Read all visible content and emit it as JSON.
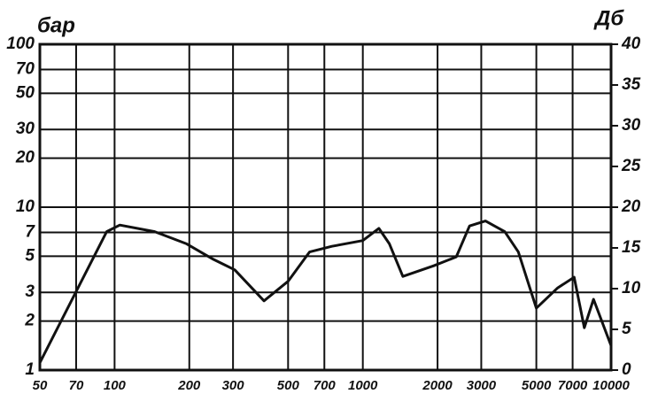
{
  "chart_data": {
    "type": "line",
    "ylabel": "бар",
    "y2label": "Дб",
    "xscale": "log",
    "yscale": "log",
    "xlim": [
      50,
      10000
    ],
    "xticks": [
      50,
      70,
      100,
      200,
      300,
      500,
      700,
      1000,
      2000,
      3000,
      5000,
      7000,
      10000
    ],
    "ylim": [
      1,
      100
    ],
    "yticks": [
      1,
      2,
      3,
      5,
      7,
      10,
      20,
      30,
      50,
      70,
      100
    ],
    "y2lim": [
      0,
      40
    ],
    "y2ticks": [
      0,
      5,
      10,
      15,
      20,
      25,
      30,
      35,
      40
    ],
    "grid": true,
    "x": [
      50,
      67,
      93,
      105,
      145,
      195,
      250,
      305,
      400,
      500,
      610,
      750,
      1000,
      1160,
      1280,
      1450,
      1930,
      2380,
      2690,
      3120,
      3730,
      4230,
      5000,
      6100,
      7100,
      7800,
      8500,
      10000
    ],
    "series": [
      {
        "color": "#111111",
        "axis": "y2",
        "values": [
          0.9,
          8.5,
          17,
          17.8,
          17,
          15.5,
          13.6,
          12.3,
          8.5,
          10.9,
          14.5,
          15.2,
          15.9,
          17.4,
          15.5,
          11.5,
          12.8,
          13.9,
          17.7,
          18.3,
          17,
          14.5,
          7.6,
          10.1,
          11.4,
          5.2,
          8.7,
          3.0
        ]
      }
    ]
  }
}
